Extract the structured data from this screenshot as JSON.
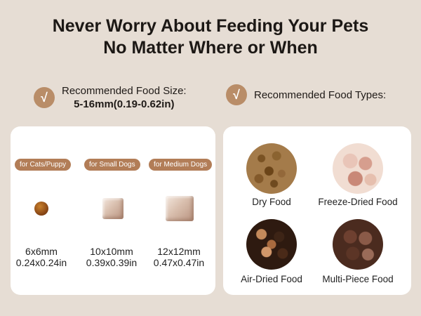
{
  "headline": {
    "line1": "Never Worry About Feeding Your Pets",
    "line2": "No Matter Where or When"
  },
  "recommendations": {
    "size_label": "Recommended Food Size:",
    "size_value": "5-16mm(0.19-0.62in)",
    "types_label": "Recommended Food Types:",
    "check_glyph": "√"
  },
  "sizes": [
    {
      "badge": "for Cats/Puppy",
      "mm": "6x6mm",
      "in": "0.24x0.24in"
    },
    {
      "badge": "for Small Dogs",
      "mm": "10x10mm",
      "in": "0.39x0.39in"
    },
    {
      "badge": "for Medium Dogs",
      "mm": "12x12mm",
      "in": "0.47x0.47in"
    }
  ],
  "food_types": [
    {
      "label": "Dry Food"
    },
    {
      "label": "Freeze-Dried Food"
    },
    {
      "label": "Air-Dried Food"
    },
    {
      "label": "Multi-Piece Food"
    }
  ],
  "colors": {
    "background": "#e6ddd4",
    "accent": "#b98d68",
    "badge": "#b27d57",
    "panel": "#ffffff"
  }
}
